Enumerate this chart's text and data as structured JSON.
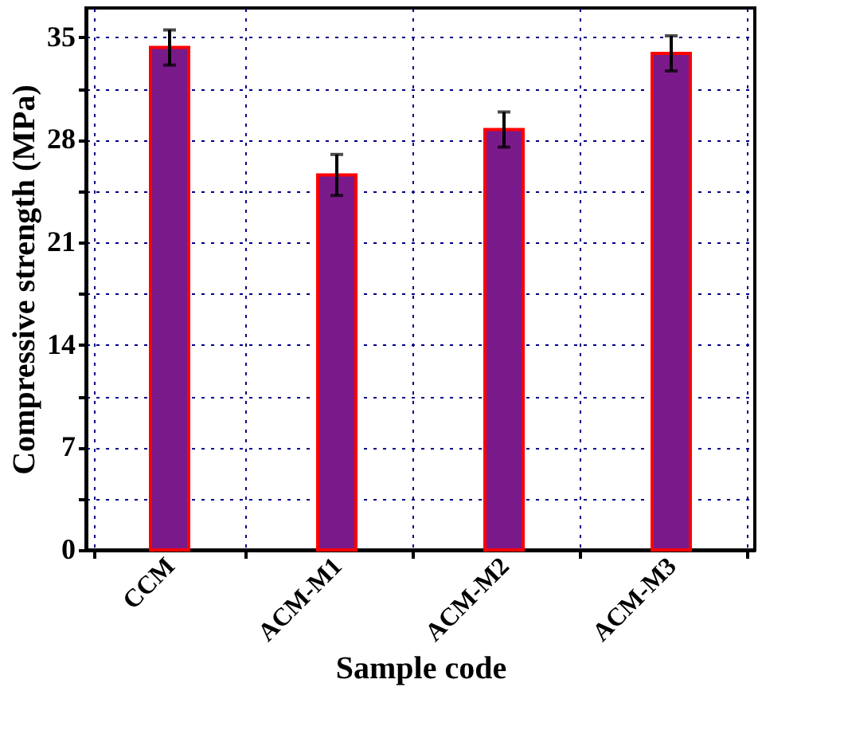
{
  "chart_data": {
    "type": "bar",
    "xlabel": "Sample code",
    "ylabel": "Compressive strength (MPa)",
    "categories": [
      "CCM",
      "ACM-M1",
      "ACM-M2",
      "ACM-M3"
    ],
    "values": [
      34.3,
      25.6,
      28.7,
      33.9
    ],
    "errors": [
      1.2,
      1.4,
      1.2,
      1.2
    ],
    "color": "#7a1a8a",
    "ylim": [
      0,
      37
    ],
    "yticks": [
      0,
      {
        "value": 3.5,
        "label": null
      },
      7,
      {
        "value": 10.5,
        "label": null
      },
      14,
      {
        "value": 17.5,
        "label": null
      },
      21,
      {
        "value": 24.5,
        "label": null
      },
      28,
      {
        "value": 31.5,
        "label": null
      },
      35
    ],
    "grid": true
  }
}
